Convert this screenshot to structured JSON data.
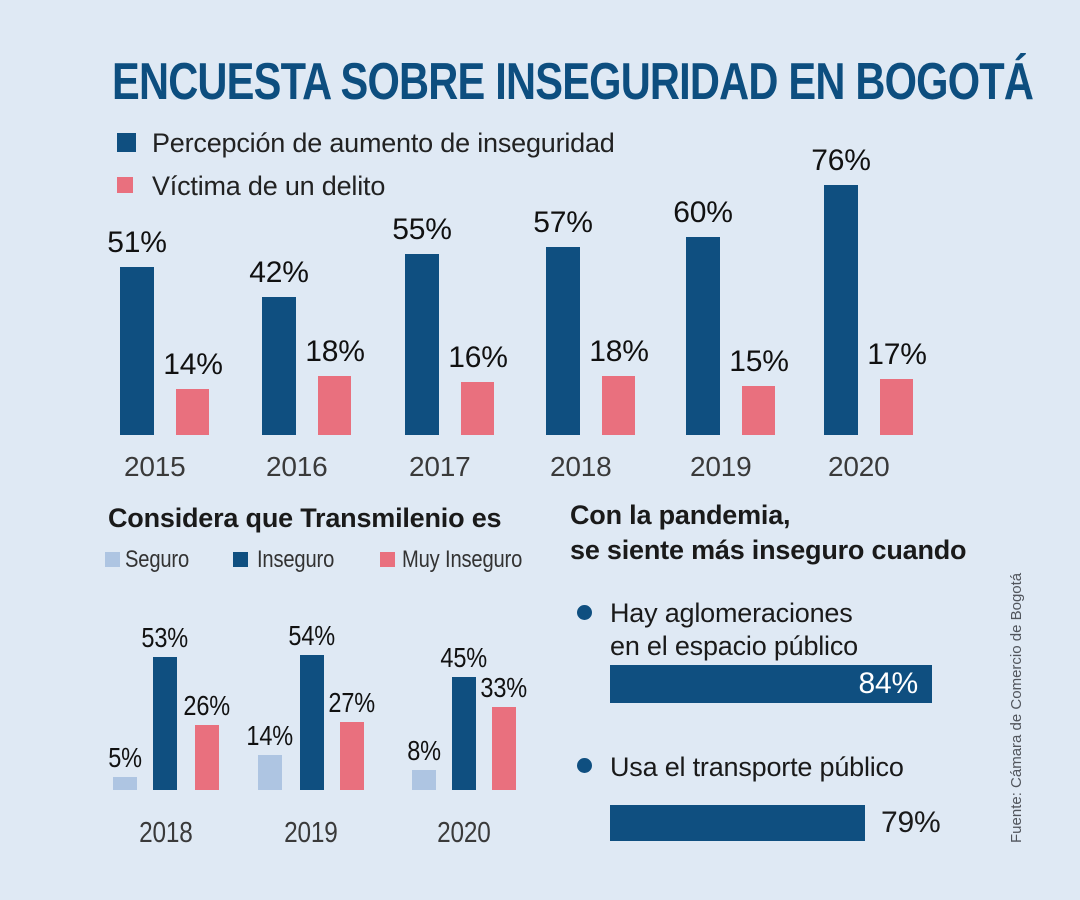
{
  "title": "ENCUESTA SOBRE INSEGURIDAD EN BOGOTÁ",
  "source": "Fuente: Cámara de Comercio de Bogotá",
  "colors": {
    "background": "#dfe9f4",
    "navy": "#0f4f80",
    "pink": "#e9707e",
    "light_blue": "#aec5e2",
    "title_text": "#0d4e7f",
    "label_text": "#111111",
    "year_text": "#3a3a3a",
    "source_text": "#51555c",
    "white": "#ffffff"
  },
  "chart_data": [
    {
      "id": "perception-victim",
      "type": "bar",
      "categories": [
        "2015",
        "2016",
        "2017",
        "2018",
        "2019",
        "2020"
      ],
      "series": [
        {
          "name": "Percepción de aumento de inseguridad",
          "color": "#0f4f80",
          "values": [
            51,
            42,
            55,
            57,
            60,
            76
          ]
        },
        {
          "name": "Víctima de un delito",
          "color": "#e9707e",
          "values": [
            14,
            18,
            16,
            18,
            15,
            17
          ]
        }
      ],
      "value_suffix": "%",
      "ylim": [
        0,
        80
      ],
      "grid": false,
      "data_labels": true,
      "legend_position": "top-left"
    },
    {
      "id": "transmilenio",
      "type": "bar",
      "title": "Considera que Transmilenio es",
      "categories": [
        "2018",
        "2019",
        "2020"
      ],
      "series": [
        {
          "name": "Seguro",
          "color": "#aec5e2",
          "values": [
            5,
            14,
            8
          ]
        },
        {
          "name": "Inseguro",
          "color": "#0f4f80",
          "values": [
            53,
            54,
            45
          ]
        },
        {
          "name": "Muy Inseguro",
          "color": "#e9707e",
          "values": [
            26,
            27,
            33
          ]
        }
      ],
      "value_suffix": "%",
      "ylim": [
        0,
        60
      ],
      "grid": false,
      "data_labels": true,
      "legend_position": "top"
    },
    {
      "id": "pandemic",
      "type": "bar",
      "orientation": "horizontal",
      "title_lines": [
        "Con la pandemia,",
        "se siente más inseguro cuando"
      ],
      "items": [
        {
          "label_lines": [
            "Hay aglomeraciones",
            "en el espacio público"
          ],
          "value": 84,
          "value_label_inside": true
        },
        {
          "label_lines": [
            "Usa el transporte público"
          ],
          "value": 79,
          "value_label_inside": false
        }
      ],
      "value_suffix": "%",
      "xlim": [
        0,
        100
      ],
      "bar_color": "#0f4f80"
    }
  ]
}
